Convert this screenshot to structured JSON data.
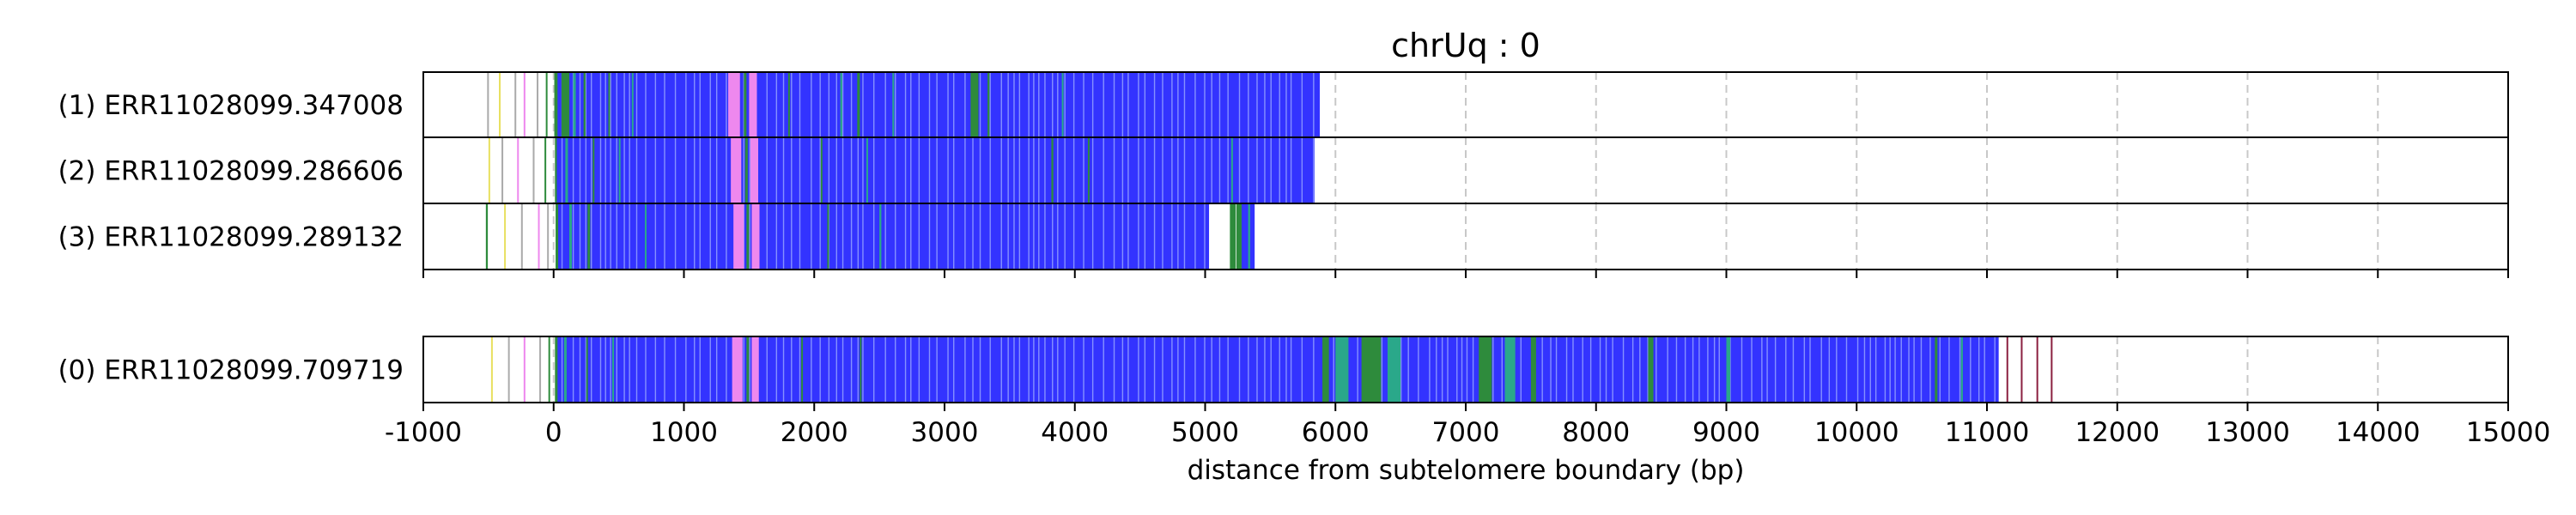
{
  "chart_data": {
    "type": "bar",
    "title": "chrUq : 0",
    "xlabel": "distance from subtelomere boundary (bp)",
    "xlim": [
      -1000,
      15000
    ],
    "xticks": [
      -1000,
      0,
      1000,
      2000,
      3000,
      4000,
      5000,
      6000,
      7000,
      8000,
      9000,
      10000,
      11000,
      12000,
      13000,
      14000,
      15000
    ],
    "grid": "vertical dashed",
    "colors": {
      "repeat": "#3333ff",
      "green": "#2e8b3c",
      "teal": "#2aa88a",
      "pink": "#ee88ee",
      "yellow": "#e8e060",
      "gray": "#aaaaaa",
      "maroon": "#8b2040",
      "frame": "#000000",
      "grid": "#c8c8c8"
    },
    "reads": [
      {
        "label": "(1) ERR11028099.347008",
        "end": 5880,
        "fill": [
          [
            20,
            5880
          ]
        ],
        "features": [
          [
            -510,
            -500,
            "gray"
          ],
          [
            -420,
            -410,
            "yellow"
          ],
          [
            -300,
            -292,
            "gray"
          ],
          [
            -230,
            -220,
            "pink"
          ],
          [
            -130,
            -120,
            "gray"
          ],
          [
            -60,
            -52,
            "green"
          ],
          [
            5,
            30,
            "green"
          ],
          [
            60,
            120,
            "green"
          ],
          [
            150,
            170,
            "teal"
          ],
          [
            230,
            245,
            "green"
          ],
          [
            420,
            430,
            "green"
          ],
          [
            600,
            612,
            "teal"
          ],
          [
            1340,
            1430,
            "pink"
          ],
          [
            1460,
            1480,
            "green"
          ],
          [
            1500,
            1560,
            "pink"
          ],
          [
            1800,
            1810,
            "green"
          ],
          [
            2200,
            2215,
            "teal"
          ],
          [
            2330,
            2350,
            "green"
          ],
          [
            2600,
            2610,
            "teal"
          ],
          [
            3200,
            3260,
            "green"
          ],
          [
            3330,
            3345,
            "green"
          ],
          [
            3900,
            3910,
            "teal"
          ]
        ]
      },
      {
        "label": "(2) ERR11028099.286606",
        "end": 5840,
        "fill": [
          [
            20,
            5840
          ]
        ],
        "features": [
          [
            -500,
            -490,
            "yellow"
          ],
          [
            -400,
            -392,
            "gray"
          ],
          [
            -280,
            -270,
            "pink"
          ],
          [
            -160,
            -152,
            "gray"
          ],
          [
            -70,
            -62,
            "green"
          ],
          [
            10,
            25,
            "green"
          ],
          [
            90,
            110,
            "teal"
          ],
          [
            300,
            312,
            "green"
          ],
          [
            500,
            510,
            "teal"
          ],
          [
            1360,
            1440,
            "pink"
          ],
          [
            1470,
            1490,
            "green"
          ],
          [
            1510,
            1570,
            "pink"
          ],
          [
            2050,
            2062,
            "green"
          ],
          [
            2400,
            2412,
            "teal"
          ],
          [
            3820,
            3835,
            "green"
          ],
          [
            4100,
            4110,
            "green"
          ],
          [
            5200,
            5210,
            "teal"
          ]
        ]
      },
      {
        "label": "(3) ERR11028099.289132",
        "end": 5380,
        "fill": [
          [
            20,
            5030
          ],
          [
            5280,
            5380
          ]
        ],
        "features": [
          [
            -520,
            -505,
            "green"
          ],
          [
            -380,
            -370,
            "yellow"
          ],
          [
            -250,
            -240,
            "gray"
          ],
          [
            -120,
            -110,
            "pink"
          ],
          [
            -50,
            -40,
            "gray"
          ],
          [
            15,
            35,
            "green"
          ],
          [
            120,
            140,
            "teal"
          ],
          [
            260,
            280,
            "green"
          ],
          [
            700,
            712,
            "teal"
          ],
          [
            1380,
            1460,
            "pink"
          ],
          [
            1480,
            1500,
            "green"
          ],
          [
            1520,
            1580,
            "pink"
          ],
          [
            2100,
            2112,
            "green"
          ],
          [
            2500,
            2515,
            "teal"
          ],
          [
            5190,
            5235,
            "green"
          ],
          [
            5240,
            5280,
            "green"
          ],
          [
            5330,
            5345,
            "teal"
          ]
        ]
      },
      {
        "label": "(0) ERR11028099.709719",
        "end": 11500,
        "fill": [
          [
            20,
            11090
          ]
        ],
        "features": [
          [
            -480,
            -470,
            "yellow"
          ],
          [
            -350,
            -340,
            "gray"
          ],
          [
            -230,
            -222,
            "pink"
          ],
          [
            -110,
            -102,
            "gray"
          ],
          [
            -40,
            -32,
            "green"
          ],
          [
            10,
            30,
            "green"
          ],
          [
            80,
            100,
            "teal"
          ],
          [
            250,
            262,
            "green"
          ],
          [
            450,
            462,
            "teal"
          ],
          [
            1370,
            1450,
            "pink"
          ],
          [
            1480,
            1500,
            "green"
          ],
          [
            1520,
            1575,
            "pink"
          ],
          [
            1900,
            1912,
            "green"
          ],
          [
            2350,
            2362,
            "green"
          ],
          [
            5900,
            5950,
            "green"
          ],
          [
            6000,
            6100,
            "teal"
          ],
          [
            6200,
            6350,
            "green"
          ],
          [
            6400,
            6500,
            "teal"
          ],
          [
            7100,
            7200,
            "green"
          ],
          [
            7300,
            7380,
            "teal"
          ],
          [
            7500,
            7540,
            "green"
          ],
          [
            8400,
            8440,
            "green"
          ],
          [
            9000,
            9030,
            "teal"
          ],
          [
            10600,
            10620,
            "green"
          ],
          [
            10800,
            10815,
            "teal"
          ],
          [
            11150,
            11160,
            "maroon"
          ],
          [
            11260,
            11270,
            "maroon"
          ],
          [
            11380,
            11390,
            "maroon"
          ],
          [
            11490,
            11500,
            "maroon"
          ]
        ]
      }
    ]
  }
}
